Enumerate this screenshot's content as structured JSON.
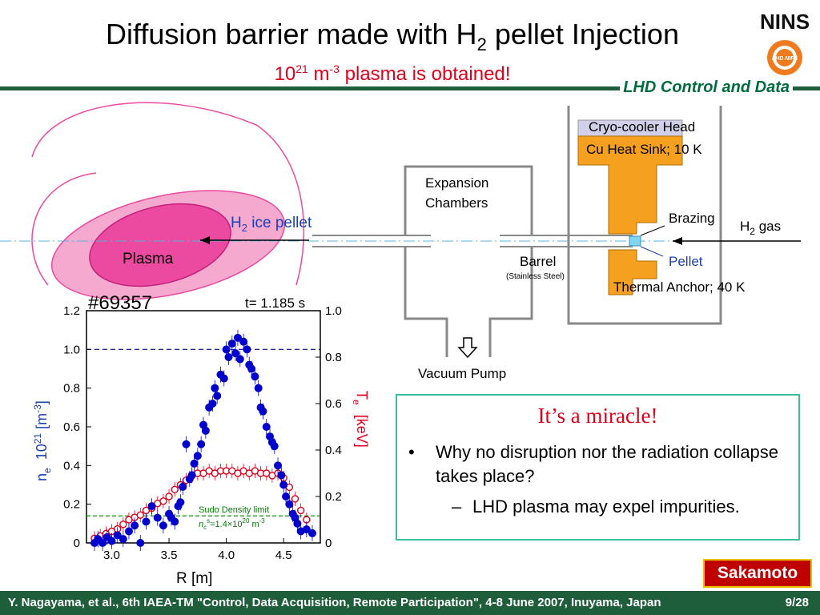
{
  "slide": {
    "title_main": "Diffusion barrier made with H",
    "title_sub": "2",
    "title_end": " pellet Injection",
    "subtitle_base": "10",
    "subtitle_exp1": "21",
    "subtitle_mid": " m",
    "subtitle_exp2": "-3",
    "subtitle_end": " plasma is obtained!",
    "section_label": "LHD Control and Data",
    "logo_text": "NINS",
    "logo_badge_text": "LHD NIFS"
  },
  "diagram": {
    "plasma_label": "Plasma",
    "pellet_label_pre": "H",
    "pellet_label_sub": "2",
    "pellet_label_post": " ice pellet",
    "expansion_label_1": "Expansion",
    "expansion_label_2": "Chambers",
    "barrel_label": "Barrel",
    "barrel_note": "(Stainless Steel)",
    "vacuum_pump_label": "Vacuum Pump",
    "cryo_head_label": "Cryo-cooler Head",
    "heat_sink_label": "Cu Heat Sink",
    "heat_sink_temp": "; 10 K",
    "brazing_label": "Brazing",
    "gas_label_pre": "H",
    "gas_label_sub": "2",
    "gas_label_post": " gas",
    "pellet_label": "Pellet",
    "anchor_label": "Thermal Anchor; 40 K",
    "colors": {
      "copper": "#f5a01e",
      "cryo_head": "#d0d0e8",
      "plasma": "#ec4aa0",
      "plasma_halo": "#f5a9cf",
      "pipe": "#888888"
    }
  },
  "chart_data": {
    "type": "scatter",
    "shot_label": "#69357",
    "time_label": "t= 1.185 s",
    "xlabel": "R   [m]",
    "ylabel_left_base": "n",
    "ylabel_left_sub": "e",
    "ylabel_left_units": "10",
    "ylabel_left_exp": "21",
    "ylabel_left_tail": " [m",
    "ylabel_left_tail_exp": "-3",
    "ylabel_left_close": "]",
    "ylabel_right_base": "T",
    "ylabel_right_sub": "e",
    "ylabel_right_units": "[keV]",
    "xlim": [
      2.78,
      4.82
    ],
    "ylim_left": [
      0,
      1.2
    ],
    "ylim_right": [
      0,
      1.0
    ],
    "x_ticks": [
      "3.0",
      "3.5",
      "4.0",
      "4.5"
    ],
    "x_tick_values": [
      3.0,
      3.5,
      4.0,
      4.5
    ],
    "yl_ticks": [
      "0",
      "0.2",
      "0.4",
      "0.6",
      "0.8",
      "1.0",
      "1.2"
    ],
    "yl_tick_values": [
      0,
      0.2,
      0.4,
      0.6,
      0.8,
      1.0,
      1.2
    ],
    "yr_ticks": [
      "0",
      "0.2",
      "0.4",
      "0.6",
      "0.8",
      "1.0"
    ],
    "yr_tick_values": [
      0,
      0.2,
      0.4,
      0.6,
      0.8,
      1.0
    ],
    "sudo_label": "Sudo Density limit",
    "sudo_value_pre": "n",
    "sudo_value_sub": "c",
    "sudo_value_sup": "s",
    "sudo_value_post": "=1.4×10",
    "sudo_value_exp": "20",
    "sudo_value_units": " m",
    "sudo_value_units_exp": "-3",
    "sudo_limit": 0.14,
    "ref_line": 1.0,
    "colors": {
      "density": "#0000cc",
      "temperature": "#e0001b",
      "sudo": "#008000",
      "ref": "#000080"
    },
    "series": [
      {
        "name": "n",
        "axis": "left",
        "x": [
          2.85,
          2.88,
          2.92,
          2.96,
          3.0,
          3.05,
          3.1,
          3.15,
          3.2,
          3.25,
          3.3,
          3.35,
          3.4,
          3.45,
          3.5,
          3.52,
          3.55,
          3.58,
          3.6,
          3.62,
          3.65,
          3.68,
          3.7,
          3.72,
          3.75,
          3.78,
          3.8,
          3.82,
          3.85,
          3.88,
          3.9,
          3.92,
          3.95,
          3.98,
          4.0,
          4.02,
          4.05,
          4.08,
          4.1,
          4.12,
          4.15,
          4.18,
          4.2,
          4.22,
          4.25,
          4.28,
          4.3,
          4.32,
          4.35,
          4.38,
          4.4,
          4.42,
          4.45,
          4.48,
          4.5,
          4.52,
          4.55,
          4.58,
          4.6,
          4.62,
          4.65,
          4.7,
          4.75
        ],
        "y": [
          0.0,
          0.02,
          0.0,
          0.03,
          0.01,
          0.04,
          0.02,
          0.06,
          0.09,
          0.0,
          0.11,
          0.19,
          0.13,
          0.09,
          0.15,
          0.13,
          0.11,
          0.19,
          0.21,
          0.29,
          0.51,
          0.33,
          0.35,
          0.41,
          0.45,
          0.51,
          0.61,
          0.58,
          0.7,
          0.72,
          0.8,
          0.76,
          0.87,
          0.85,
          1.0,
          0.96,
          1.03,
          0.98,
          1.06,
          0.95,
          1.04,
          1.0,
          0.92,
          0.9,
          0.86,
          0.8,
          0.7,
          0.68,
          0.6,
          0.55,
          0.52,
          0.5,
          0.4,
          0.35,
          0.3,
          0.24,
          0.2,
          0.15,
          0.13,
          0.1,
          0.06,
          0.07,
          0.05
        ]
      },
      {
        "name": "T",
        "axis": "right",
        "x": [
          2.85,
          2.9,
          2.95,
          3.0,
          3.05,
          3.1,
          3.15,
          3.2,
          3.25,
          3.3,
          3.35,
          3.4,
          3.45,
          3.5,
          3.55,
          3.6,
          3.65,
          3.7,
          3.75,
          3.8,
          3.85,
          3.9,
          3.95,
          4.0,
          4.05,
          4.1,
          4.15,
          4.2,
          4.25,
          4.3,
          4.35,
          4.4,
          4.45,
          4.5,
          4.55,
          4.6,
          4.65,
          4.7
        ],
        "y": [
          0.02,
          0.03,
          0.04,
          0.05,
          0.06,
          0.08,
          0.1,
          0.11,
          0.12,
          0.14,
          0.15,
          0.17,
          0.18,
          0.2,
          0.23,
          0.25,
          0.27,
          0.29,
          0.3,
          0.3,
          0.31,
          0.3,
          0.31,
          0.31,
          0.31,
          0.3,
          0.31,
          0.3,
          0.31,
          0.3,
          0.3,
          0.29,
          0.3,
          0.28,
          0.24,
          0.19,
          0.14,
          0.1
        ]
      }
    ]
  },
  "miracle": {
    "title": "It’s a miracle!",
    "bullet1_mark": "•",
    "bullet1": "Why no disruption nor the radiation collapse takes place?",
    "bullet2_mark": "–",
    "bullet2": "LHD plasma may expel impurities."
  },
  "footer": {
    "author": "Sakamoto",
    "citation": "Y. Nagayama, et al.,  6th IAEA-TM \"Control, Data Acquisition, Remote Participation\", 4-8 June 2007, Inuyama, Japan",
    "page": "9/28"
  }
}
